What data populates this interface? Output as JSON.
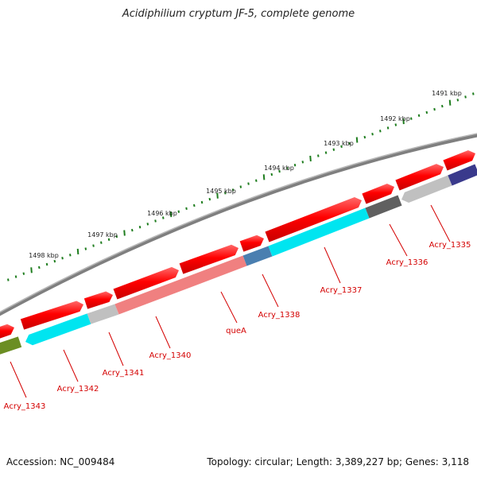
{
  "title": "Acidiphilium cryptum JF-5, complete genome",
  "footer": {
    "accession": "Accession: NC_009484",
    "stats": "Topology: circular; Length: 3,389,227 bp; Genes: 3,118"
  },
  "kbp_ticks": [
    "1491 kbp",
    "1492 kbp",
    "1493 kbp",
    "1494 kbp",
    "1495 kbp",
    "1496 kbp",
    "1497 kbp",
    "1498 kbp"
  ],
  "gene_labels": [
    "Acry_1335",
    "Acry_1336",
    "Acry_1337",
    "Acry_1338",
    "queA",
    "Acry_1340",
    "Acry_1341",
    "Acry_1342",
    "Acry_1343"
  ],
  "colors": {
    "backbone": "#808080",
    "cds": "#ff1010",
    "cyan": "#00e5f0",
    "pink": "#f08080",
    "steel_blue": "#4a7fb0",
    "light_gray": "#c0c0c0",
    "dark_gray": "#606060",
    "navy": "#3a3a8c",
    "olive": "#6b8e23",
    "tick_green": "#1e7d1e",
    "label_red": "#d40000"
  }
}
